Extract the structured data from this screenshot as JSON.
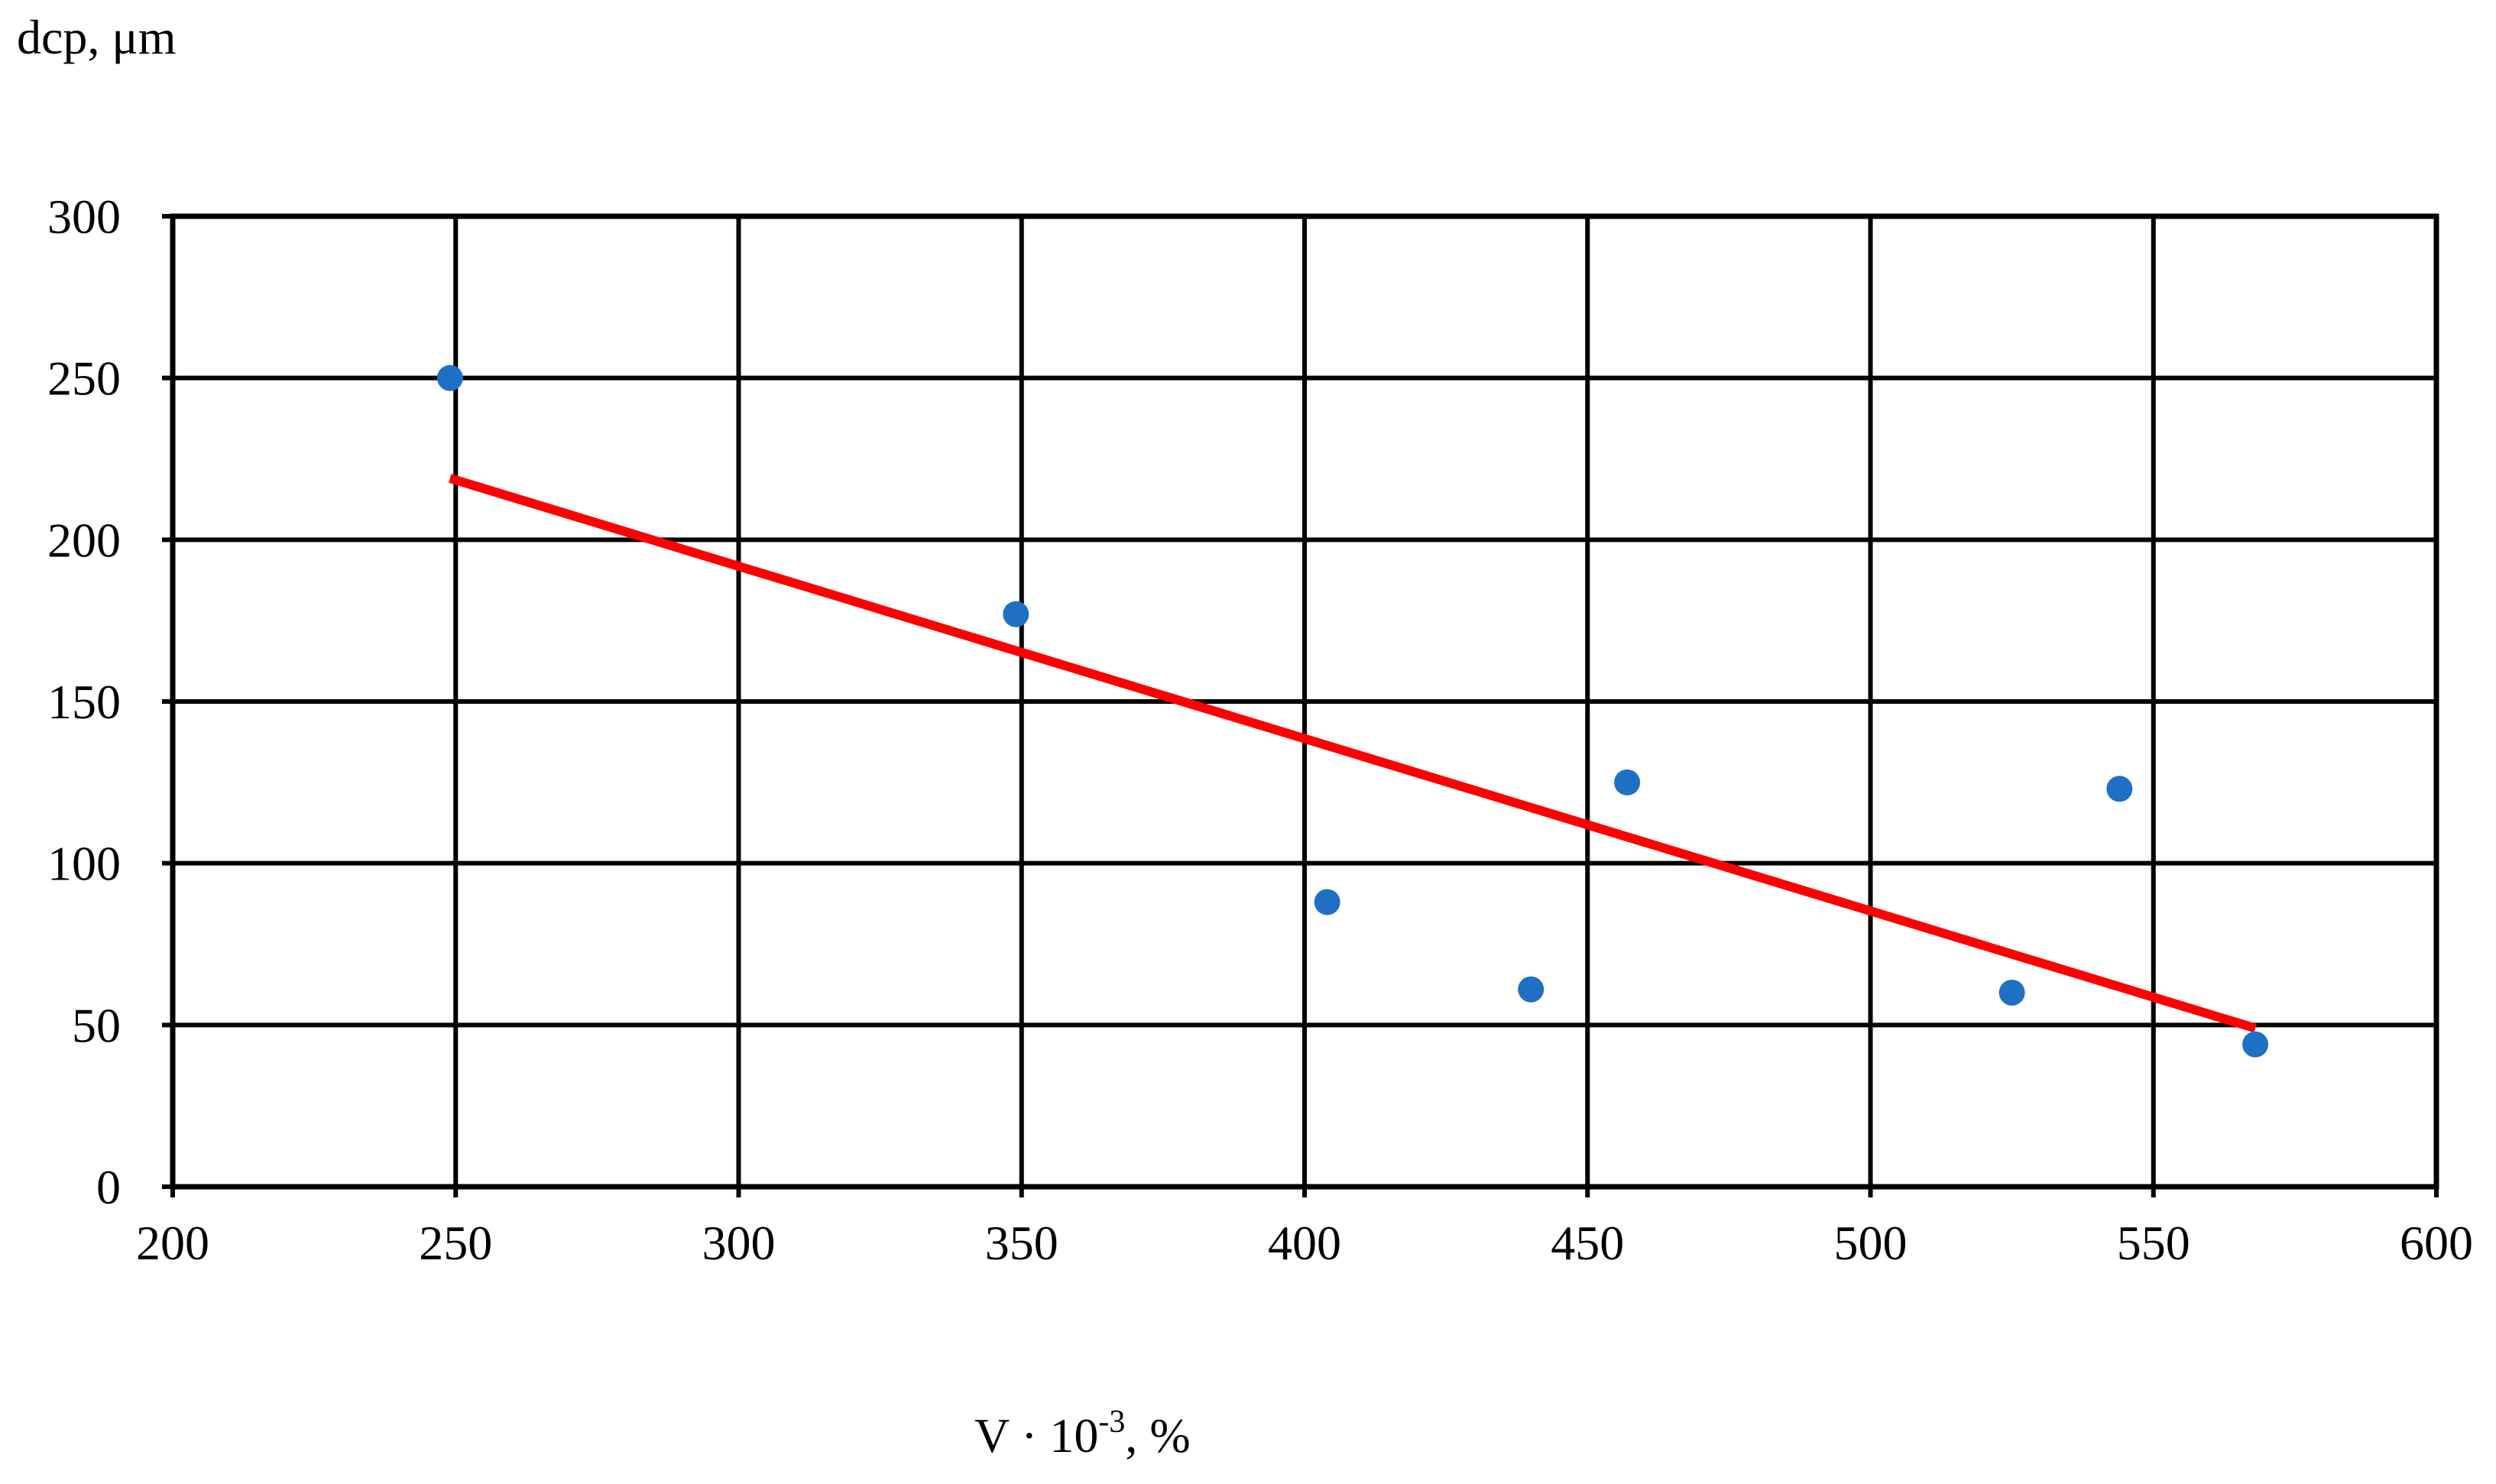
{
  "chart_data": {
    "type": "scatter",
    "title": "",
    "ylabel": "dср, μm",
    "xlabel": {
      "main": "V · 10",
      "superscript": "-3",
      "suffix": ", %"
    },
    "xlim": [
      200,
      600
    ],
    "ylim": [
      0,
      300
    ],
    "x_ticks": [
      200,
      250,
      300,
      350,
      400,
      450,
      500,
      550,
      600
    ],
    "y_ticks": [
      0,
      50,
      100,
      150,
      200,
      250,
      300
    ],
    "grid": true,
    "legend": "none",
    "series": [
      {
        "kind": "points",
        "color": "#1f6fc5",
        "points": [
          {
            "x": 249,
            "y": 250
          },
          {
            "x": 349,
            "y": 177
          },
          {
            "x": 404,
            "y": 88
          },
          {
            "x": 440,
            "y": 61
          },
          {
            "x": 457,
            "y": 125
          },
          {
            "x": 525,
            "y": 60
          },
          {
            "x": 544,
            "y": 123
          },
          {
            "x": 568,
            "y": 44
          }
        ]
      },
      {
        "kind": "trendline",
        "color": "#ff0000",
        "points": [
          {
            "x": 249,
            "y": 219
          },
          {
            "x": 568,
            "y": 49
          }
        ]
      }
    ]
  }
}
